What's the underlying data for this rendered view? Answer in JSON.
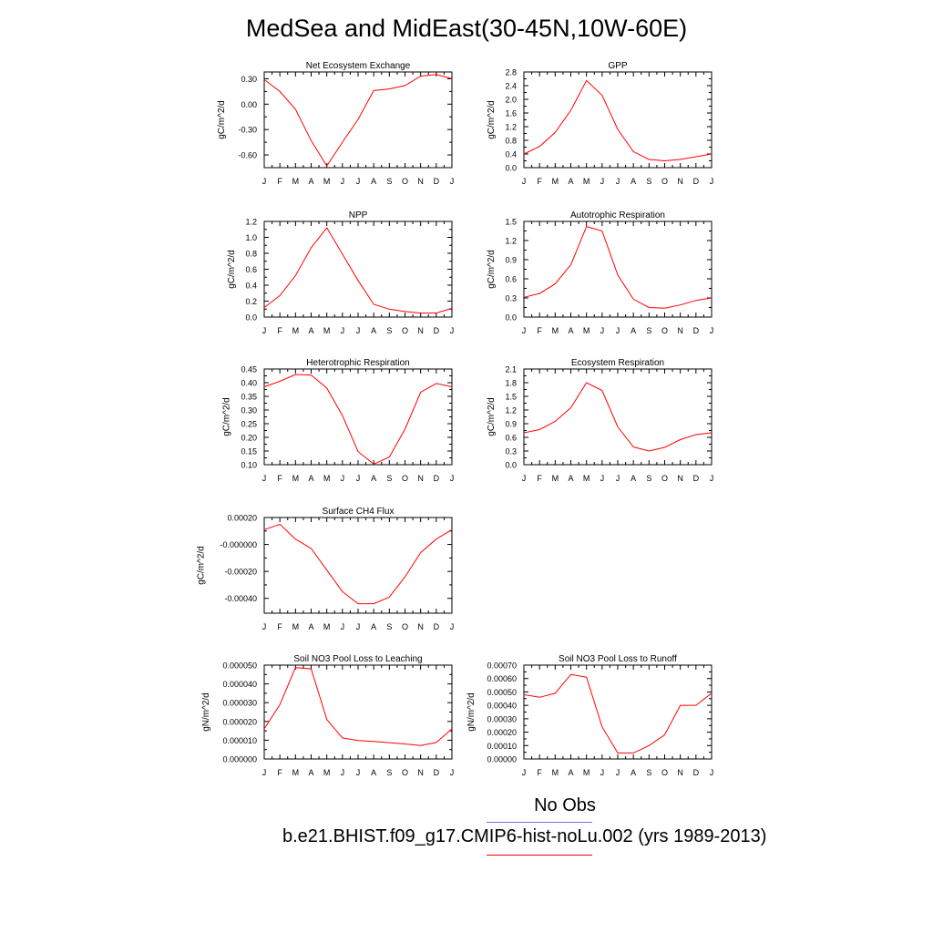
{
  "page_title": "MedSea and MidEast(30-45N,10W-60E)",
  "legend": [
    {
      "label": "No Obs",
      "color": "#7070f0"
    },
    {
      "label": "b.e21.BHIST.f09_g17.CMIP6-hist-noLu.002 (yrs 1989-2013)",
      "color": "#ff0000"
    }
  ],
  "months": [
    "J",
    "F",
    "M",
    "A",
    "M",
    "J",
    "J",
    "A",
    "S",
    "O",
    "N",
    "D",
    "J"
  ],
  "line_color": "#ff0000",
  "chart_data": [
    {
      "type": "line",
      "title": "Net Ecosystem Exchange",
      "ylabel": "gC/m^2/d",
      "ylim": [
        -0.75,
        0.38
      ],
      "yticks": [
        -0.6,
        -0.3,
        0.0,
        0.3
      ],
      "ytick_labels": [
        "-0.60",
        "-0.30",
        "0.00",
        "0.30"
      ],
      "values": [
        0.29,
        0.15,
        -0.06,
        -0.43,
        -0.73,
        -0.45,
        -0.18,
        0.16,
        0.18,
        0.22,
        0.33,
        0.35,
        0.3
      ]
    },
    {
      "type": "line",
      "title": "GPP",
      "ylabel": "gC/m^2/d",
      "ylim": [
        0.0,
        2.8
      ],
      "yticks": [
        0.0,
        0.4,
        0.8,
        1.2,
        1.6,
        2.0,
        2.4,
        2.8
      ],
      "ytick_labels": [
        "0.0",
        "0.4",
        "0.8",
        "1.2",
        "1.6",
        "2.0",
        "2.4",
        "2.8"
      ],
      "values": [
        0.4,
        0.62,
        1.03,
        1.68,
        2.55,
        2.12,
        1.12,
        0.47,
        0.24,
        0.2,
        0.24,
        0.32,
        0.4
      ]
    },
    {
      "type": "line",
      "title": "NPP",
      "ylabel": "gC/m^2/d",
      "ylim": [
        0.0,
        1.2
      ],
      "yticks": [
        0.0,
        0.2,
        0.4,
        0.6,
        0.8,
        1.0,
        1.2
      ],
      "ytick_labels": [
        "0.0",
        "0.2",
        "0.4",
        "0.6",
        "0.8",
        "1.0",
        "1.2"
      ],
      "values": [
        0.12,
        0.27,
        0.52,
        0.87,
        1.12,
        0.79,
        0.46,
        0.16,
        0.1,
        0.07,
        0.05,
        0.05,
        0.11
      ]
    },
    {
      "type": "line",
      "title": "Autotrophic Respiration",
      "ylabel": "gC/m^2/d",
      "ylim": [
        0.0,
        1.5
      ],
      "yticks": [
        0.0,
        0.3,
        0.6,
        0.9,
        1.2,
        1.5
      ],
      "ytick_labels": [
        "0.0",
        "0.3",
        "0.6",
        "0.9",
        "1.2",
        "1.5"
      ],
      "values": [
        0.31,
        0.37,
        0.52,
        0.82,
        1.42,
        1.35,
        0.66,
        0.28,
        0.15,
        0.14,
        0.19,
        0.26,
        0.3
      ]
    },
    {
      "type": "line",
      "title": "Heterotrophic Respiration",
      "ylabel": "gC/m^2/d",
      "ylim": [
        0.1,
        0.45
      ],
      "yticks": [
        0.1,
        0.15,
        0.2,
        0.25,
        0.3,
        0.35,
        0.4,
        0.45
      ],
      "ytick_labels": [
        "0.10",
        "0.15",
        "0.20",
        "0.25",
        "0.30",
        "0.35",
        "0.40",
        "0.45"
      ],
      "values": [
        0.385,
        0.405,
        0.43,
        0.428,
        0.38,
        0.28,
        0.148,
        0.102,
        0.128,
        0.23,
        0.365,
        0.397,
        0.385
      ]
    },
    {
      "type": "line",
      "title": "Ecosystem Respiration",
      "ylabel": "gC/m^2/d",
      "ylim": [
        0.0,
        2.1
      ],
      "yticks": [
        0.0,
        0.3,
        0.6,
        0.9,
        1.2,
        1.5,
        1.8,
        2.1
      ],
      "ytick_labels": [
        "0.0",
        "0.3",
        "0.6",
        "0.9",
        "1.2",
        "1.5",
        "1.8",
        "2.1"
      ],
      "values": [
        0.7,
        0.77,
        0.95,
        1.25,
        1.8,
        1.63,
        0.83,
        0.39,
        0.3,
        0.38,
        0.55,
        0.66,
        0.7
      ]
    },
    {
      "type": "line",
      "title": "Surface CH4 Flux",
      "ylabel": "gC/m^2/d",
      "ylim": [
        -0.00051,
        0.0002
      ],
      "yticks": [
        -0.0004,
        -0.0002,
        0.0,
        0.0002
      ],
      "ytick_labels": [
        "-0.00040",
        "-0.00020",
        "-0.000000",
        "0.00020"
      ],
      "values": [
        0.00011,
        0.00015,
        4e-05,
        -3e-05,
        -0.00019,
        -0.00035,
        -0.00044,
        -0.00044,
        -0.00039,
        -0.00024,
        -6e-05,
        4e-05,
        0.00011
      ]
    },
    {
      "type": "line",
      "title": "Soil NO3 Pool Loss to Leaching",
      "ylabel": "gN/m^2/d",
      "ylim": [
        0.0,
        5e-05
      ],
      "yticks": [
        0.0,
        1e-05,
        2e-05,
        3e-05,
        4e-05,
        5e-05
      ],
      "ytick_labels": [
        "0.000000",
        "0.000010",
        "0.000020",
        "0.000030",
        "0.000040",
        "0.000050"
      ],
      "values": [
        1.6e-05,
        2.9e-05,
        4.87e-05,
        4.8e-05,
        2.1e-05,
        1.12e-05,
        9.8e-06,
        9.3e-06,
        8.7e-06,
        8e-06,
        7.2e-06,
        8.8e-06,
        1.6e-05
      ]
    },
    {
      "type": "line",
      "title": "Soil NO3 Pool Loss to Runoff",
      "ylabel": "gN/m^2/d",
      "ylim": [
        0.0,
        0.0007
      ],
      "yticks": [
        0.0,
        0.0001,
        0.0002,
        0.0003,
        0.0004,
        0.0005,
        0.0006,
        0.0007
      ],
      "ytick_labels": [
        "0.00000",
        "0.00010",
        "0.00020",
        "0.00030",
        "0.00040",
        "0.00050",
        "0.00060",
        "0.00070"
      ],
      "values": [
        0.00048,
        0.00046,
        0.00049,
        0.00063,
        0.00061,
        0.00024,
        4.5e-05,
        4.5e-05,
        0.0001,
        0.00018,
        0.0004,
        0.0004,
        0.00049
      ]
    }
  ]
}
